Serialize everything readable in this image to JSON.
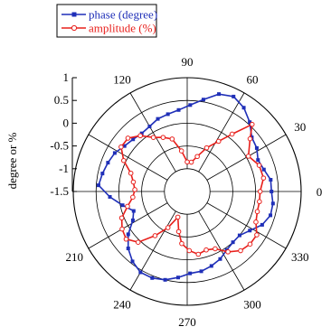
{
  "chart_data": {
    "type": "polar-line",
    "title": "",
    "ylabel": "degree or %",
    "rlim": [
      -1.5,
      1
    ],
    "radial_ticks": [
      1,
      0.5,
      0,
      -0.5,
      -1,
      -1.5
    ],
    "radial_tick_labels": [
      "1",
      "0.5",
      "0",
      "-0.5",
      "-1",
      "-1.5"
    ],
    "angle_ticks": [
      0,
      30,
      60,
      90,
      120,
      150,
      180,
      210,
      240,
      270,
      300,
      330
    ],
    "angle_tick_labels": [
      "0",
      "30",
      "60",
      "90",
      "120",
      "",
      "",
      "210",
      "240",
      "270",
      "300",
      "330"
    ],
    "grid": true,
    "legend": {
      "placement": "top-left"
    },
    "series": [
      {
        "name": "phase (degree)",
        "color": "#1f2fb8",
        "marker": "square",
        "points": [
          {
            "theta": 0,
            "r": 0.35
          },
          {
            "theta": 8,
            "r": 0.35
          },
          {
            "theta": 16,
            "r": 0.25
          },
          {
            "theta": 24,
            "r": 0.2
          },
          {
            "theta": 32,
            "r": 0.3
          },
          {
            "theta": 40,
            "r": 0.35
          },
          {
            "theta": 48,
            "r": 0.55
          },
          {
            "theta": 56,
            "r": 0.72
          },
          {
            "theta": 64,
            "r": 0.82
          },
          {
            "theta": 72,
            "r": 0.75
          },
          {
            "theta": 80,
            "r": 0.55
          },
          {
            "theta": 88,
            "r": 0.4
          },
          {
            "theta": 96,
            "r": 0.3
          },
          {
            "theta": 104,
            "r": 0.25
          },
          {
            "theta": 112,
            "r": 0.22
          },
          {
            "theta": 120,
            "r": 0.15
          },
          {
            "theta": 128,
            "r": 0.12
          },
          {
            "theta": 136,
            "r": 0.15
          },
          {
            "theta": 144,
            "r": 0.2
          },
          {
            "theta": 152,
            "r": 0.3
          },
          {
            "theta": 160,
            "r": 0.35
          },
          {
            "theta": 168,
            "r": 0.4
          },
          {
            "theta": 176,
            "r": 0.45
          },
          {
            "theta": 184,
            "r": 0.2
          },
          {
            "theta": 192,
            "r": -0.05
          },
          {
            "theta": 200,
            "r": -0.25
          },
          {
            "theta": 208,
            "r": -0.15
          },
          {
            "theta": 216,
            "r": 0.1
          },
          {
            "theta": 224,
            "r": 0.3
          },
          {
            "theta": 232,
            "r": 0.45
          },
          {
            "theta": 240,
            "r": 0.55
          },
          {
            "theta": 248,
            "r": 0.55
          },
          {
            "theta": 256,
            "r": 0.5
          },
          {
            "theta": 264,
            "r": 0.4
          },
          {
            "theta": 272,
            "r": 0.3
          },
          {
            "theta": 280,
            "r": 0.28
          },
          {
            "theta": 288,
            "r": 0.22
          },
          {
            "theta": 296,
            "r": 0.15
          },
          {
            "theta": 304,
            "r": 0.05
          },
          {
            "theta": 312,
            "r": 0.0
          },
          {
            "theta": 320,
            "r": 0.0
          },
          {
            "theta": 328,
            "r": 0.12
          },
          {
            "theta": 336,
            "r": 0.3
          },
          {
            "theta": 344,
            "r": 0.4
          },
          {
            "theta": 352,
            "r": 0.4
          }
        ]
      },
      {
        "name": "amplitude (%)",
        "color": "#e8201c",
        "marker": "circle-open",
        "points": [
          {
            "theta": 0,
            "r": 0.1
          },
          {
            "theta": 10,
            "r": 0.2
          },
          {
            "theta": 20,
            "r": 0.18
          },
          {
            "theta": 30,
            "r": 0.05
          },
          {
            "theta": 40,
            "r": 0.3
          },
          {
            "theta": 46,
            "r": 0.55
          },
          {
            "theta": 52,
            "r": 0.1
          },
          {
            "theta": 58,
            "r": -0.2
          },
          {
            "theta": 66,
            "r": -0.45
          },
          {
            "theta": 74,
            "r": -0.7
          },
          {
            "theta": 82,
            "r": -0.85
          },
          {
            "theta": 90,
            "r": -0.85
          },
          {
            "theta": 98,
            "r": -0.6
          },
          {
            "theta": 106,
            "r": -0.3
          },
          {
            "theta": 114,
            "r": -0.2
          },
          {
            "theta": 122,
            "r": -0.1
          },
          {
            "theta": 130,
            "r": 0.1
          },
          {
            "theta": 138,
            "r": 0.25
          },
          {
            "theta": 146,
            "r": 0.25
          },
          {
            "theta": 154,
            "r": 0.05
          },
          {
            "theta": 162,
            "r": -0.2
          },
          {
            "theta": 170,
            "r": -0.3
          },
          {
            "theta": 178,
            "r": -0.35
          },
          {
            "theta": 186,
            "r": -0.3
          },
          {
            "theta": 194,
            "r": -0.15
          },
          {
            "theta": 202,
            "r": 0.05
          },
          {
            "theta": 210,
            "r": 0.15
          },
          {
            "theta": 218,
            "r": 0.2
          },
          {
            "theta": 226,
            "r": 0.05
          },
          {
            "theta": 234,
            "r": -0.3
          },
          {
            "theta": 242,
            "r": -0.6
          },
          {
            "theta": 250,
            "r": -0.9
          },
          {
            "theta": 258,
            "r": -0.6
          },
          {
            "theta": 264,
            "r": -0.35
          },
          {
            "theta": 272,
            "r": -0.2
          },
          {
            "theta": 280,
            "r": -0.1
          },
          {
            "theta": 288,
            "r": -0.15
          },
          {
            "theta": 296,
            "r": -0.1
          },
          {
            "theta": 304,
            "r": 0.1
          },
          {
            "theta": 312,
            "r": 0.25
          },
          {
            "theta": 320,
            "r": 0.3
          },
          {
            "theta": 328,
            "r": 0.3
          },
          {
            "theta": 336,
            "r": 0.15
          },
          {
            "theta": 344,
            "r": 0.1
          },
          {
            "theta": 352,
            "r": 0.1
          }
        ]
      }
    ]
  }
}
